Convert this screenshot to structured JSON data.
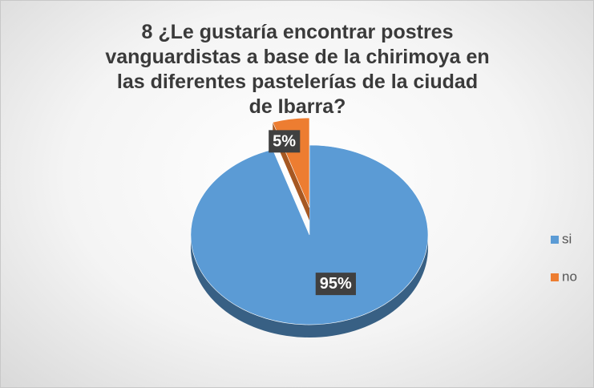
{
  "chart_data": {
    "type": "pie",
    "title": "8 ¿Le gustaría  encontrar postres vanguardistas a base de la chirimoya  en las diferentes pastelerías de la ciudad de Ibarra?",
    "categories": [
      "si",
      "no"
    ],
    "values": [
      95,
      5
    ],
    "value_labels": [
      "95%",
      "5%"
    ],
    "colors": [
      "#5b9bd5",
      "#ed7d31"
    ],
    "legend": "right"
  }
}
